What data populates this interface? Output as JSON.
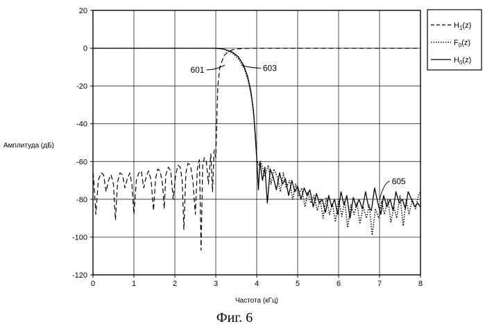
{
  "chart_data": {
    "type": "line",
    "title": "",
    "xlabel": "Частота (кГц)",
    "ylabel": "Амплитуда (дБ)",
    "caption": "Фиг. 6",
    "xlim": [
      0,
      8
    ],
    "ylim": [
      -120,
      20
    ],
    "xticks": [
      0,
      1,
      2,
      3,
      4,
      5,
      6,
      7,
      8
    ],
    "yticks": [
      20,
      0,
      -20,
      -40,
      -60,
      -80,
      -100,
      -120
    ],
    "grid": true,
    "legend_position": "outside-top-right",
    "series": [
      {
        "name": "H1(z)",
        "name_base": "H",
        "name_sub": "1",
        "name_tail": "(z)",
        "style": "dashed",
        "color": "#000000",
        "x": [
          0,
          0.02,
          0.07,
          0.13,
          0.2,
          0.26,
          0.32,
          0.38,
          0.44,
          0.5,
          0.55,
          0.6,
          0.66,
          0.72,
          0.78,
          0.84,
          0.9,
          0.95,
          1.0,
          1.06,
          1.12,
          1.18,
          1.24,
          1.3,
          1.36,
          1.42,
          1.48,
          1.53,
          1.58,
          1.64,
          1.7,
          1.74,
          1.78,
          1.84,
          1.9,
          1.96,
          2.02,
          2.08,
          2.13,
          2.18,
          2.22,
          2.27,
          2.32,
          2.38,
          2.44,
          2.5,
          2.55,
          2.6,
          2.64,
          2.68,
          2.72,
          2.77,
          2.82,
          2.88,
          2.92,
          2.96,
          3.0,
          3.05,
          3.1,
          3.2,
          3.3,
          3.4,
          3.5,
          3.6,
          3.7,
          3.8,
          3.9,
          4.0,
          4.3,
          5.0,
          6.0,
          7.0,
          8.0
        ],
        "y": [
          -66,
          -70,
          -88,
          -70,
          -66,
          -67,
          -76,
          -70,
          -67,
          -72,
          -91,
          -71,
          -66,
          -67,
          -74,
          -69,
          -66,
          -72,
          -88,
          -70,
          -66,
          -65,
          -74,
          -68,
          -65,
          -70,
          -86,
          -69,
          -64,
          -65,
          -72,
          -85,
          -67,
          -63,
          -65,
          -80,
          -67,
          -62,
          -63,
          -70,
          -96,
          -66,
          -61,
          -62,
          -70,
          -88,
          -64,
          -59,
          -107,
          -62,
          -58,
          -60,
          -72,
          -56,
          -76,
          -54,
          -58,
          -20,
          -10,
          -4,
          -1.8,
          -0.9,
          -0.5,
          -0.3,
          -0.2,
          -0.1,
          -0.05,
          0,
          0,
          0,
          0,
          0,
          0
        ],
        "annotation": "601"
      },
      {
        "name": "F0(z)",
        "name_base": "F",
        "name_sub": "0",
        "name_tail": "(z)",
        "style": "dotted",
        "color": "#000000",
        "x": [
          0,
          2.5,
          3.0,
          3.2,
          3.4,
          3.55,
          3.7,
          3.8,
          3.88,
          3.94,
          3.98,
          4.0,
          4.05,
          4.1,
          4.15,
          4.2,
          4.28,
          4.35,
          4.42,
          4.5,
          4.58,
          4.65,
          4.72,
          4.8,
          4.88,
          4.95,
          5.02,
          5.1,
          5.18,
          5.25,
          5.32,
          5.4,
          5.48,
          5.55,
          5.62,
          5.7,
          5.78,
          5.85,
          5.92,
          6.0,
          6.08,
          6.15,
          6.22,
          6.3,
          6.38,
          6.45,
          6.52,
          6.6,
          6.68,
          6.75,
          6.82,
          6.9,
          6.98,
          7.05,
          7.12,
          7.2,
          7.28,
          7.35,
          7.42,
          7.5,
          7.58,
          7.65,
          7.72,
          7.8,
          7.88,
          7.95,
          8.0
        ],
        "y": [
          0,
          0,
          0,
          -0.6,
          -2.5,
          -5.5,
          -11,
          -18,
          -27,
          -38,
          -50,
          -59,
          -62,
          -60,
          -64,
          -68,
          -62,
          -72,
          -64,
          -68,
          -76,
          -66,
          -74,
          -70,
          -80,
          -72,
          -78,
          -74,
          -84,
          -76,
          -82,
          -78,
          -86,
          -80,
          -90,
          -79,
          -88,
          -82,
          -92,
          -80,
          -89,
          -81,
          -95,
          -83,
          -88,
          -82,
          -93,
          -84,
          -90,
          -83,
          -99,
          -85,
          -90,
          -81,
          -88,
          -80,
          -92,
          -84,
          -90,
          -78,
          -94,
          -80,
          -88,
          -80,
          -85,
          -78,
          -76
        ],
        "annotation": "603"
      },
      {
        "name": "H0(z)",
        "name_base": "H",
        "name_sub": "0",
        "name_tail": "(z)",
        "style": "solid",
        "color": "#000000",
        "x": [
          0,
          2.5,
          3.0,
          3.2,
          3.4,
          3.55,
          3.68,
          3.78,
          3.86,
          3.92,
          3.96,
          4.0,
          4.04,
          4.08,
          4.14,
          4.2,
          4.26,
          4.33,
          4.4,
          4.48,
          4.56,
          4.63,
          4.7,
          4.78,
          4.86,
          4.93,
          5.0,
          5.08,
          5.16,
          5.23,
          5.3,
          5.38,
          5.46,
          5.53,
          5.6,
          5.68,
          5.76,
          5.83,
          5.9,
          5.98,
          6.06,
          6.13,
          6.2,
          6.28,
          6.36,
          6.43,
          6.5,
          6.58,
          6.66,
          6.73,
          6.8,
          6.88,
          6.96,
          7.03,
          7.1,
          7.18,
          7.26,
          7.33,
          7.4,
          7.48,
          7.56,
          7.63,
          7.7,
          7.78,
          7.86,
          7.93,
          8.0
        ],
        "y": [
          0,
          0,
          0,
          -0.5,
          -2,
          -4.5,
          -9,
          -15,
          -23,
          -33,
          -45,
          -58,
          -75,
          -60,
          -70,
          -63,
          -82,
          -64,
          -68,
          -75,
          -66,
          -72,
          -69,
          -78,
          -70,
          -76,
          -73,
          -80,
          -74,
          -78,
          -75,
          -84,
          -77,
          -82,
          -80,
          -87,
          -78,
          -84,
          -80,
          -88,
          -76,
          -83,
          -78,
          -90,
          -79,
          -84,
          -80,
          -85,
          -76,
          -84,
          -86,
          -74,
          -82,
          -88,
          -78,
          -84,
          -80,
          -86,
          -76,
          -82,
          -80,
          -85,
          -76,
          -80,
          -84,
          -82,
          -84
        ],
        "annotation": "605"
      }
    ]
  }
}
